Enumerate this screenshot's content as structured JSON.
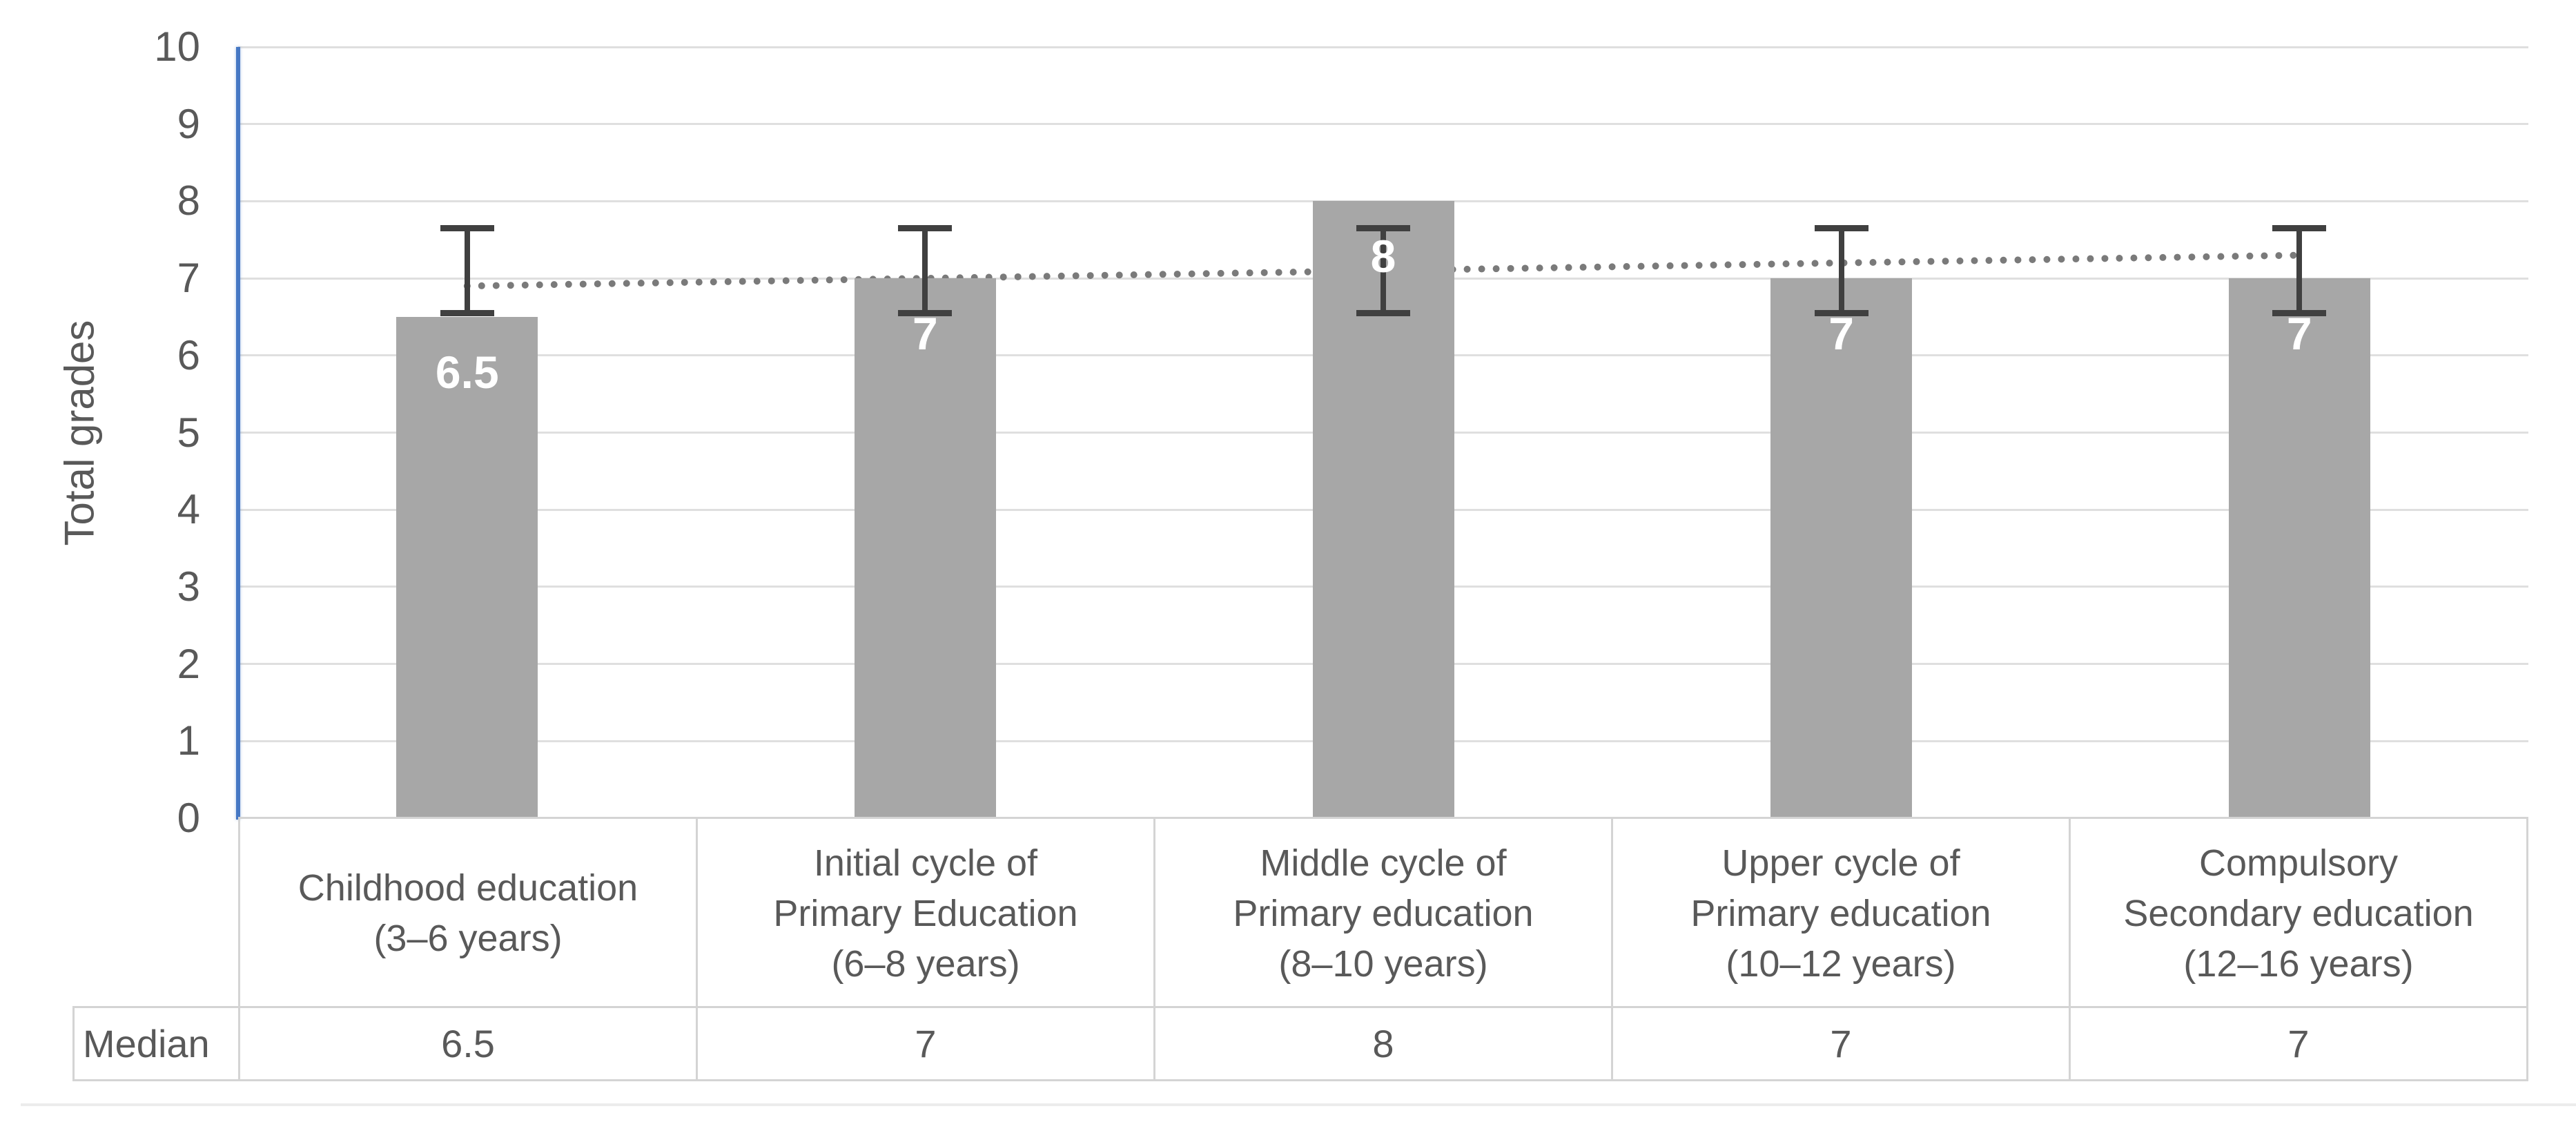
{
  "chart_data": {
    "type": "bar",
    "title": "",
    "ylabel": "Total grades",
    "ylim": [
      0,
      10
    ],
    "ytick_step": 1,
    "grid": "horizontal",
    "legend_position": "none",
    "categories": [
      {
        "label": "Childhood education (3–6 years)",
        "lines": [
          "Childhood education",
          "(3–6 years)"
        ]
      },
      {
        "label": "Initial cycle of Primary Education (6–8 years)",
        "lines": [
          "Initial cycle of",
          "Primary Education",
          "(6–8 years)"
        ]
      },
      {
        "label": "Middle cycle of Primary education (8–10 years)",
        "lines": [
          "Middle cycle of",
          "Primary education",
          "(8–10 years)"
        ]
      },
      {
        "label": "Upper cycle of Primary education (10–12 years)",
        "lines": [
          "Upper cycle of",
          "Primary education",
          "(10–12 years)"
        ]
      },
      {
        "label": "Compulsory Secondary education (12–16 years)",
        "lines": [
          "Compulsory",
          "Secondary education",
          "(12–16 years)"
        ]
      }
    ],
    "series": [
      {
        "name": "Median",
        "values": [
          6.5,
          7,
          8,
          7,
          7
        ]
      }
    ],
    "bar_labels": [
      "6.5",
      "7",
      "8",
      "7",
      "7"
    ],
    "error_bars": {
      "upper": 7.65,
      "lower": 6.55,
      "applies_to": "every category"
    },
    "trendline": {
      "style": "dotted",
      "start_value": 6.9,
      "end_value": 7.3
    },
    "colors": {
      "bar": "#a7a7a7",
      "bar_label": "#ffffff",
      "axis_line": "#4678c4",
      "gridline": "#dfdfdf",
      "error_bar": "#404040",
      "trendline": "#7a7a7a",
      "text": "#595959",
      "table_border": "#d4d4d4"
    }
  },
  "table": {
    "row_header": "Median",
    "values": [
      "6.5",
      "7",
      "8",
      "7",
      "7"
    ]
  }
}
